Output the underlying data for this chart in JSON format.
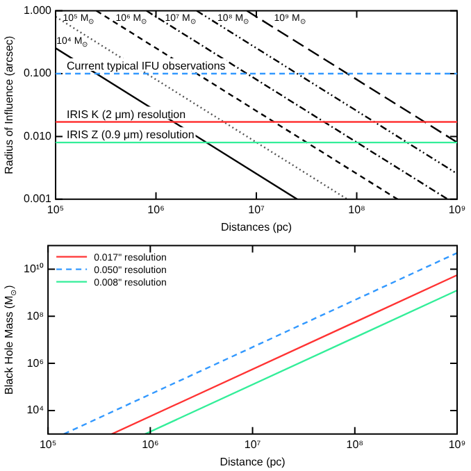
{
  "chart_data": [
    {
      "type": "line",
      "xlabel": "Distances (pc)",
      "ylabel": "Radius of Influence (arcsec)",
      "log": "xy",
      "grid": false,
      "legend": false,
      "xlim": [
        100000,
        1000000000
      ],
      "xticks": [
        {
          "value": 100000,
          "label": "10⁵"
        },
        {
          "value": 1000000,
          "label": "10⁶"
        },
        {
          "value": 10000000,
          "label": "10⁷"
        },
        {
          "value": 100000000,
          "label": "10⁸"
        },
        {
          "value": 1000000000,
          "label": "10⁹"
        }
      ],
      "ylim": [
        0.001,
        1
      ],
      "yticks": [
        {
          "value": 0.001,
          "label": "0.001"
        },
        {
          "value": 0.01,
          "label": "0.010"
        },
        {
          "value": 0.1,
          "label": "0.100"
        },
        {
          "value": 1,
          "label": "1.000"
        }
      ],
      "series": [
        {
          "color": "#000000",
          "line_style": "solid",
          "x": [
            100000,
            25500000
          ],
          "values": [
            0.255,
            0.001
          ]
        },
        {
          "color": "#555555",
          "line_style": "dotted",
          "x": [
            100000,
            80600000
          ],
          "values": [
            0.806,
            0.001
          ]
        },
        {
          "color": "#000000",
          "line_style": "dashed",
          "x": [
            255000,
            255000000
          ],
          "values": [
            1,
            0.001
          ]
        },
        {
          "color": "#000000",
          "line_style": "dashdot",
          "x": [
            806000,
            806000000
          ],
          "values": [
            1,
            0.001
          ]
        },
        {
          "color": "#000000",
          "line_style": "dashdotdot",
          "x": [
            2550000,
            1000000000
          ],
          "values": [
            1,
            0.00255
          ]
        },
        {
          "color": "#000000",
          "line_style": "longdash",
          "x": [
            8060000,
            1000000000
          ],
          "values": [
            1,
            0.00806
          ]
        }
      ],
      "ref_lines": [
        {
          "axis": "y",
          "value": 0.1,
          "label": "Current typical IFU observations",
          "color": "#3399ff",
          "line_style": "dashed"
        },
        {
          "axis": "y",
          "value": 0.017,
          "label": "IRIS K (2 μm) resolution",
          "color": "#ff3333",
          "line_style": "solid"
        },
        {
          "axis": "y",
          "value": 0.008,
          "label": "IRIS Z (0.9 μm) resolution",
          "color": "#33ee99",
          "line_style": "solid"
        }
      ],
      "annotations": [
        {
          "text": "10⁴ M$_{⊙}$",
          "x": 102000,
          "y": 0.3
        },
        {
          "text": "10⁵ M$_{⊙}$",
          "x": 118000,
          "y": 0.69
        },
        {
          "text": "10⁶ M$_{⊙}$",
          "x": 396000,
          "y": 0.69
        },
        {
          "text": "10⁷ M$_{⊙}$",
          "x": 1230000,
          "y": 0.69
        },
        {
          "text": "10⁸ M$_{⊙}$",
          "x": 4100000,
          "y": 0.69
        },
        {
          "text": "10⁹ M$_{⊙}$",
          "x": 15000000,
          "y": 0.69
        }
      ]
    },
    {
      "type": "line",
      "xlabel": "Distance (pc)",
      "ylabel": "Black Hole Mass (M$_{⊙}$)",
      "log": "xy",
      "grid": false,
      "legend": "top left",
      "xlim": [
        100000,
        1000000000
      ],
      "xticks": [
        {
          "value": 100000,
          "label": "10⁵"
        },
        {
          "value": 1000000,
          "label": "10⁶"
        },
        {
          "value": 10000000,
          "label": "10⁷"
        },
        {
          "value": 100000000,
          "label": "10⁸"
        },
        {
          "value": 1000000000,
          "label": "10⁹"
        }
      ],
      "ylim": [
        1000,
        100000000000
      ],
      "yticks": [
        {
          "value": 10000,
          "label": "10⁴"
        },
        {
          "value": 1000000,
          "label": "10⁶"
        },
        {
          "value": 100000000,
          "label": "10⁸"
        },
        {
          "value": 10000000000,
          "label": "10¹⁰"
        }
      ],
      "series": [
        {
          "name": "0.017\" resolution",
          "color": "#ff3333",
          "line_style": "solid",
          "x": [
            420000,
            1000000000
          ],
          "values": [
            1000,
            5600000000
          ]
        },
        {
          "name": "0.050\" resolution",
          "color": "#3399ff",
          "line_style": "dashed",
          "x": [
            143000,
            1000000000
          ],
          "values": [
            1000,
            49000000000
          ]
        },
        {
          "name": "0.008\" resolution",
          "color": "#33ee99",
          "line_style": "solid",
          "x": [
            890000,
            1000000000
          ],
          "values": [
            1000,
            1260000000
          ]
        }
      ]
    }
  ]
}
